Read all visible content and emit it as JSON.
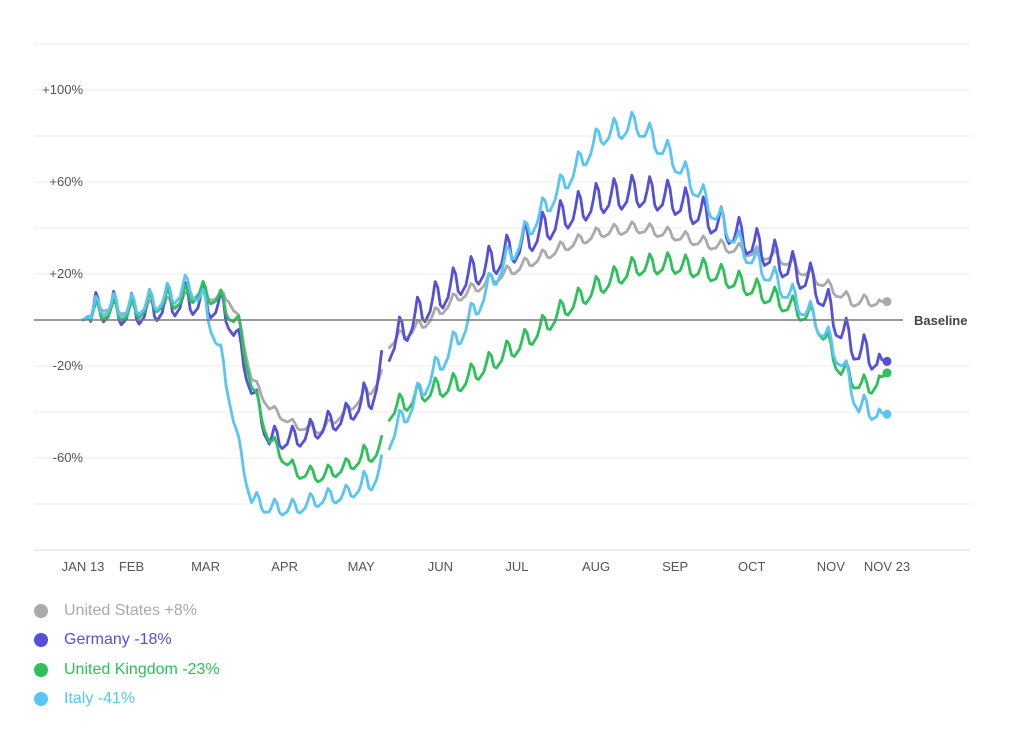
{
  "chart_data": {
    "type": "line",
    "ylim": [
      -100,
      120
    ],
    "y_ticks": [
      {
        "value": 100,
        "label": "+100%"
      },
      {
        "value": 60,
        "label": "+60%"
      },
      {
        "value": 20,
        "label": "+20%"
      },
      {
        "value": -20,
        "label": "-20%"
      },
      {
        "value": -60,
        "label": "-60%"
      }
    ],
    "gridlines": [
      100,
      80,
      60,
      40,
      20,
      -20,
      -40,
      -60,
      -80
    ],
    "baseline": {
      "value": 0,
      "label": "Baseline"
    },
    "x_ticks": [
      {
        "date": "2020-01-13",
        "label": "JAN 13"
      },
      {
        "date": "2020-02-01",
        "label": "FEB"
      },
      {
        "date": "2020-03-01",
        "label": "MAR"
      },
      {
        "date": "2020-04-01",
        "label": "APR"
      },
      {
        "date": "2020-05-01",
        "label": "MAY"
      },
      {
        "date": "2020-06-01",
        "label": "JUN"
      },
      {
        "date": "2020-07-01",
        "label": "JUL"
      },
      {
        "date": "2020-08-01",
        "label": "AUG"
      },
      {
        "date": "2020-09-01",
        "label": "SEP"
      },
      {
        "date": "2020-10-01",
        "label": "OCT"
      },
      {
        "date": "2020-11-01",
        "label": "NOV"
      },
      {
        "date": "2020-11-23",
        "label": "NOV 23"
      }
    ],
    "gap": [
      "2020-05-09",
      "2020-05-12"
    ],
    "weekly_amplitudes": [
      5,
      14,
      9,
      10,
      16
    ],
    "series": [
      {
        "name": "United States",
        "legend": "United States +8%",
        "color": "#aaaaaa",
        "final": 8,
        "keys": [
          [
            "2020-01-13",
            0
          ],
          [
            "2020-01-20",
            6
          ],
          [
            "2020-01-31",
            4
          ],
          [
            "2020-02-10",
            6
          ],
          [
            "2020-02-20",
            8
          ],
          [
            "2020-02-27",
            12
          ],
          [
            "2020-03-05",
            10
          ],
          [
            "2020-03-10",
            10
          ],
          [
            "2020-03-14",
            0
          ],
          [
            "2020-03-19",
            -25
          ],
          [
            "2020-03-26",
            -38
          ],
          [
            "2020-04-05",
            -46
          ],
          [
            "2020-04-15",
            -48
          ],
          [
            "2020-04-25",
            -40
          ],
          [
            "2020-05-05",
            -30
          ],
          [
            "2020-05-09",
            -25
          ],
          [
            "2020-05-12",
            -10
          ],
          [
            "2020-05-25",
            -2
          ],
          [
            "2020-06-08",
            10
          ],
          [
            "2020-06-22",
            18
          ],
          [
            "2020-07-06",
            25
          ],
          [
            "2020-07-20",
            32
          ],
          [
            "2020-08-03",
            38
          ],
          [
            "2020-08-17",
            40
          ],
          [
            "2020-08-31",
            37
          ],
          [
            "2020-09-14",
            33
          ],
          [
            "2020-09-28",
            30
          ],
          [
            "2020-10-12",
            27
          ],
          [
            "2020-10-26",
            18
          ],
          [
            "2020-11-09",
            8
          ],
          [
            "2020-11-23",
            8
          ]
        ]
      },
      {
        "name": "Germany",
        "legend": "Germany -18%",
        "color": "#5550d8",
        "final": -18,
        "keys": [
          [
            "2020-01-13",
            0
          ],
          [
            "2020-01-20",
            5
          ],
          [
            "2020-01-31",
            3
          ],
          [
            "2020-02-10",
            5
          ],
          [
            "2020-02-20",
            8
          ],
          [
            "2020-02-27",
            8
          ],
          [
            "2020-03-05",
            6
          ],
          [
            "2020-03-10",
            2
          ],
          [
            "2020-03-14",
            -10
          ],
          [
            "2020-03-19",
            -30
          ],
          [
            "2020-03-26",
            -52
          ],
          [
            "2020-04-05",
            -52
          ],
          [
            "2020-04-15",
            -47
          ],
          [
            "2020-04-25",
            -42
          ],
          [
            "2020-05-05",
            -33
          ],
          [
            "2020-05-09",
            -22
          ],
          [
            "2020-05-12",
            -12
          ],
          [
            "2020-05-25",
            4
          ],
          [
            "2020-06-08",
            16
          ],
          [
            "2020-06-22",
            25
          ],
          [
            "2020-07-06",
            35
          ],
          [
            "2020-07-20",
            45
          ],
          [
            "2020-08-03",
            52
          ],
          [
            "2020-08-17",
            55
          ],
          [
            "2020-08-31",
            52
          ],
          [
            "2020-09-14",
            44
          ],
          [
            "2020-09-28",
            35
          ],
          [
            "2020-10-12",
            25
          ],
          [
            "2020-10-26",
            15
          ],
          [
            "2020-11-05",
            -5
          ],
          [
            "2020-11-12",
            -14
          ],
          [
            "2020-11-23",
            -18
          ]
        ]
      },
      {
        "name": "United Kingdom",
        "legend": "United Kingdom -23%",
        "color": "#2ec05a",
        "final": -23,
        "keys": [
          [
            "2020-01-13",
            0
          ],
          [
            "2020-01-20",
            4
          ],
          [
            "2020-01-31",
            3
          ],
          [
            "2020-02-10",
            7
          ],
          [
            "2020-02-20",
            9
          ],
          [
            "2020-02-27",
            12
          ],
          [
            "2020-03-05",
            10
          ],
          [
            "2020-03-10",
            4
          ],
          [
            "2020-03-14",
            -2
          ],
          [
            "2020-03-19",
            -28
          ],
          [
            "2020-03-26",
            -52
          ],
          [
            "2020-04-05",
            -66
          ],
          [
            "2020-04-15",
            -68
          ],
          [
            "2020-04-25",
            -64
          ],
          [
            "2020-05-05",
            -58
          ],
          [
            "2020-05-09",
            -56
          ],
          [
            "2020-05-12",
            -40
          ],
          [
            "2020-05-25",
            -32
          ],
          [
            "2020-06-08",
            -28
          ],
          [
            "2020-06-22",
            -18
          ],
          [
            "2020-07-06",
            -8
          ],
          [
            "2020-07-20",
            5
          ],
          [
            "2020-08-03",
            15
          ],
          [
            "2020-08-17",
            23
          ],
          [
            "2020-08-31",
            24
          ],
          [
            "2020-09-14",
            21
          ],
          [
            "2020-09-28",
            15
          ],
          [
            "2020-10-12",
            8
          ],
          [
            "2020-10-26",
            0
          ],
          [
            "2020-11-05",
            -22
          ],
          [
            "2020-11-15",
            -30
          ],
          [
            "2020-11-23",
            -23
          ]
        ]
      },
      {
        "name": "Italy",
        "legend": "Italy -41%",
        "color": "#5bc5f2",
        "final": -41,
        "keys": [
          [
            "2020-01-13",
            0
          ],
          [
            "2020-01-20",
            6
          ],
          [
            "2020-01-31",
            5
          ],
          [
            "2020-02-10",
            8
          ],
          [
            "2020-02-20",
            12
          ],
          [
            "2020-02-24",
            15
          ],
          [
            "2020-03-01",
            6
          ],
          [
            "2020-03-05",
            -8
          ],
          [
            "2020-03-10",
            -30
          ],
          [
            "2020-03-14",
            -55
          ],
          [
            "2020-03-19",
            -78
          ],
          [
            "2020-03-26",
            -82
          ],
          [
            "2020-04-05",
            -82
          ],
          [
            "2020-04-15",
            -78
          ],
          [
            "2020-04-25",
            -76
          ],
          [
            "2020-05-05",
            -70
          ],
          [
            "2020-05-09",
            -65
          ],
          [
            "2020-05-12",
            -52
          ],
          [
            "2020-05-25",
            -30
          ],
          [
            "2020-06-08",
            -8
          ],
          [
            "2020-06-22",
            18
          ],
          [
            "2020-07-06",
            40
          ],
          [
            "2020-07-20",
            60
          ],
          [
            "2020-08-03",
            80
          ],
          [
            "2020-08-17",
            85
          ],
          [
            "2020-08-31",
            70
          ],
          [
            "2020-09-14",
            50
          ],
          [
            "2020-09-28",
            30
          ],
          [
            "2020-10-12",
            15
          ],
          [
            "2020-10-26",
            0
          ],
          [
            "2020-11-05",
            -18
          ],
          [
            "2020-11-12",
            -38
          ],
          [
            "2020-11-23",
            -41
          ]
        ]
      }
    ]
  }
}
